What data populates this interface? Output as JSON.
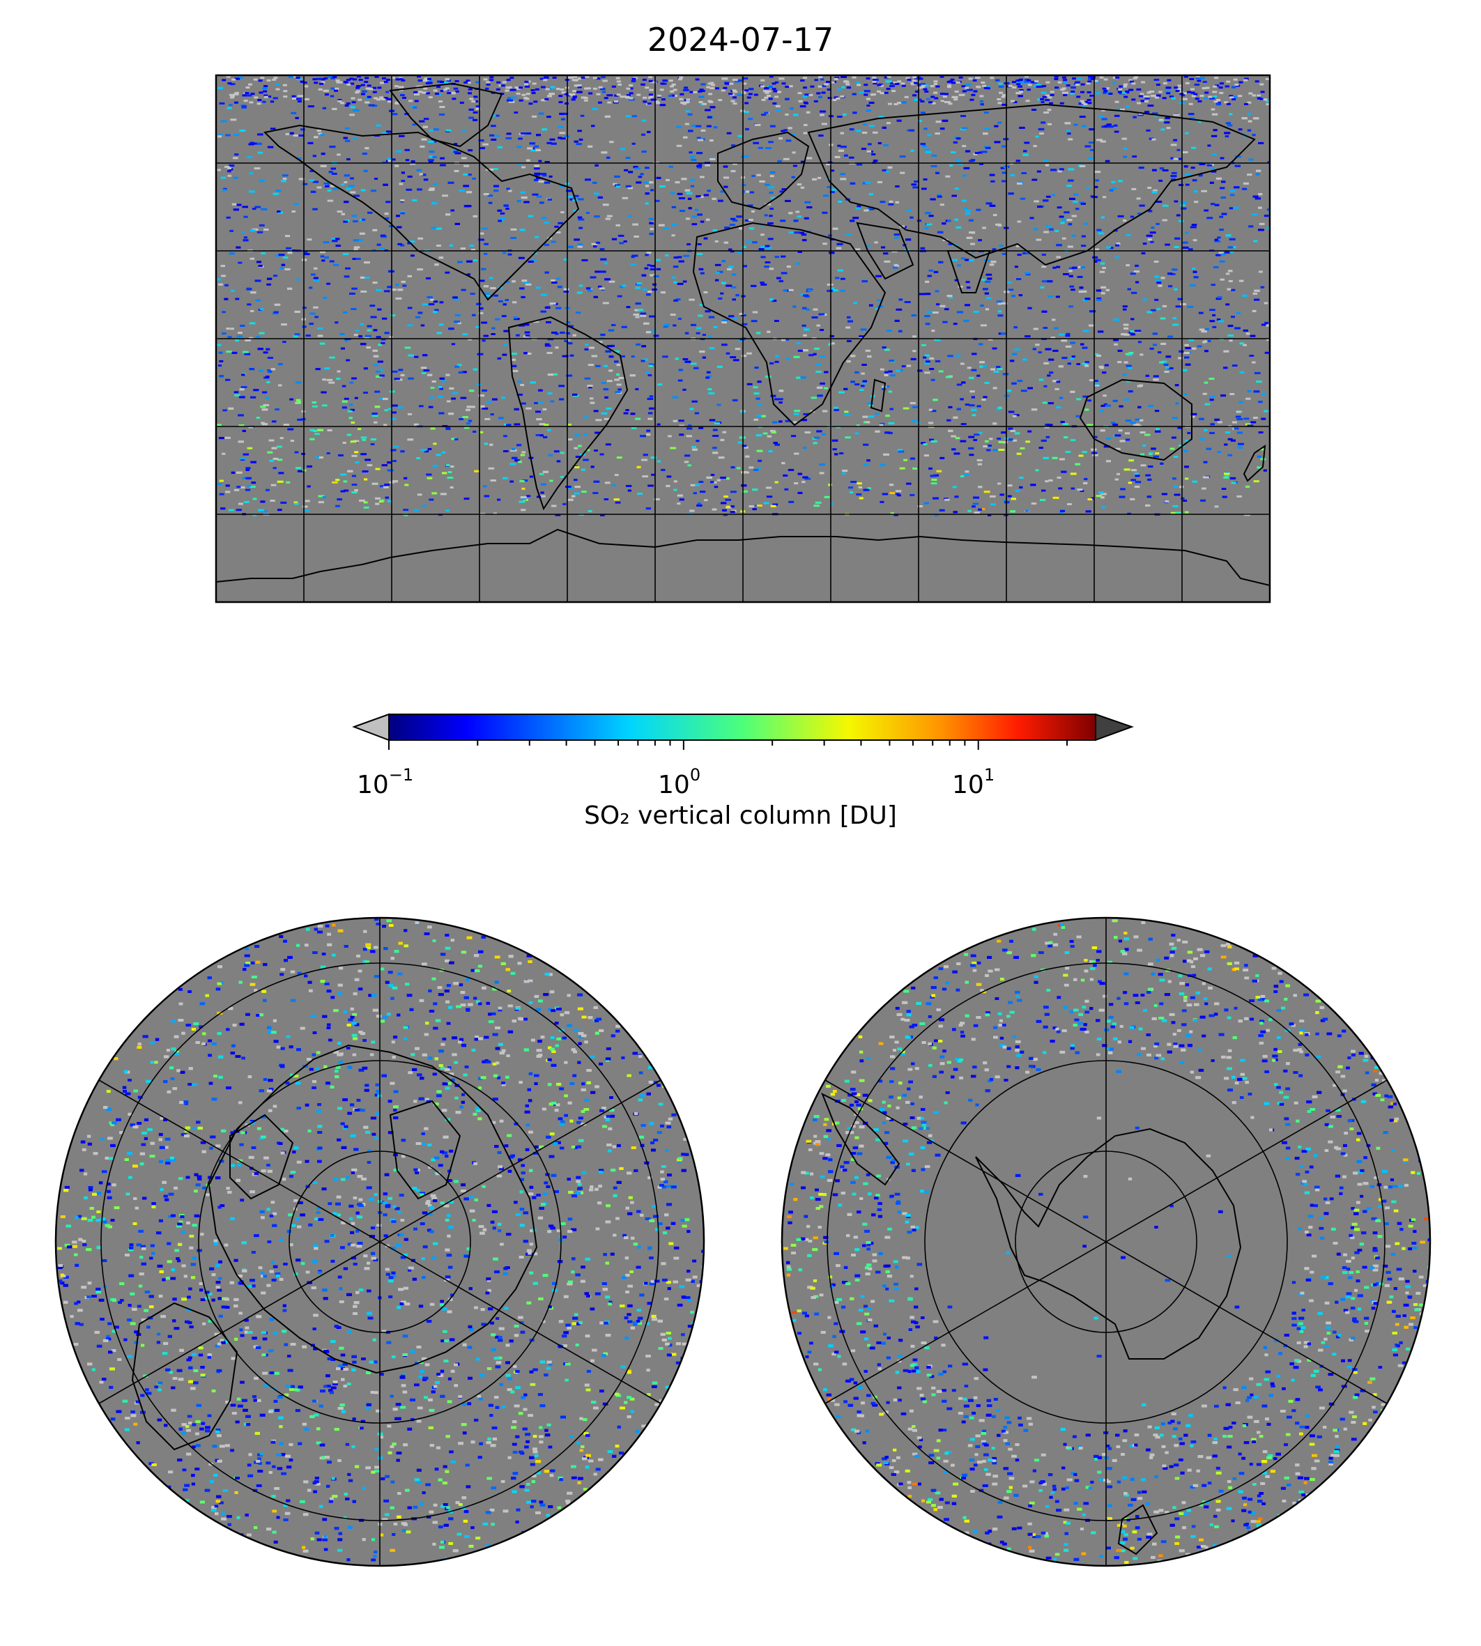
{
  "figure": {
    "title": "2024-07-17"
  },
  "colorbar": {
    "label": "SO₂ vertical column [DU]",
    "colormap": "jet",
    "scale": "log",
    "range": [
      0.1,
      25
    ],
    "extend": "both",
    "under_color": "#c0c0c0",
    "over_color": "#404040",
    "ticks": [
      {
        "base": "10",
        "exp": "−1"
      },
      {
        "base": "10",
        "exp": "0"
      },
      {
        "base": "10",
        "exp": "1"
      }
    ]
  },
  "maps": [
    {
      "projection": "plate-carree",
      "extent": "global"
    },
    {
      "projection": "north-polar-stereographic"
    },
    {
      "projection": "south-polar-stereographic"
    }
  ],
  "style": {
    "background_gray": "#808080",
    "coastline_color": "#000000"
  }
}
